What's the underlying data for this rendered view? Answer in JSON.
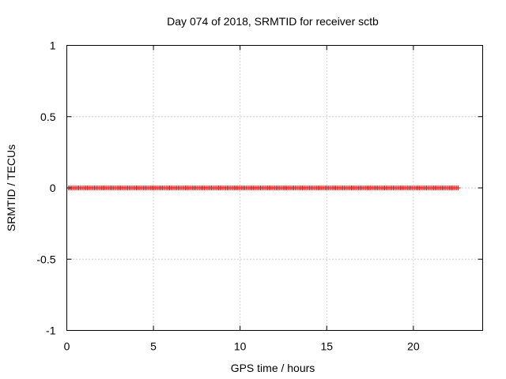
{
  "chart_data": {
    "type": "scatter",
    "title": "Day 074 of 2018, SRMTID for receiver sctb",
    "xlabel": "GPS time / hours",
    "ylabel": "SRMTID / TECUs",
    "xlim": [
      0,
      24
    ],
    "ylim": [
      -1,
      1
    ],
    "xticks": [
      0,
      5,
      10,
      15,
      20
    ],
    "xtick_labels": [
      "0",
      "5",
      "10",
      "15",
      "20"
    ],
    "yticks": [
      -1,
      -0.5,
      0,
      0.5,
      1
    ],
    "ytick_labels": [
      "-1",
      "-0.5",
      "0",
      "0.5",
      "1"
    ],
    "grid": true,
    "marker": "+",
    "marker_color": "#ff0000",
    "series": [
      {
        "name": "sctb",
        "x_start": 0.1,
        "x_end": 22.6,
        "x_step": 0.0833,
        "y": 0
      }
    ]
  }
}
